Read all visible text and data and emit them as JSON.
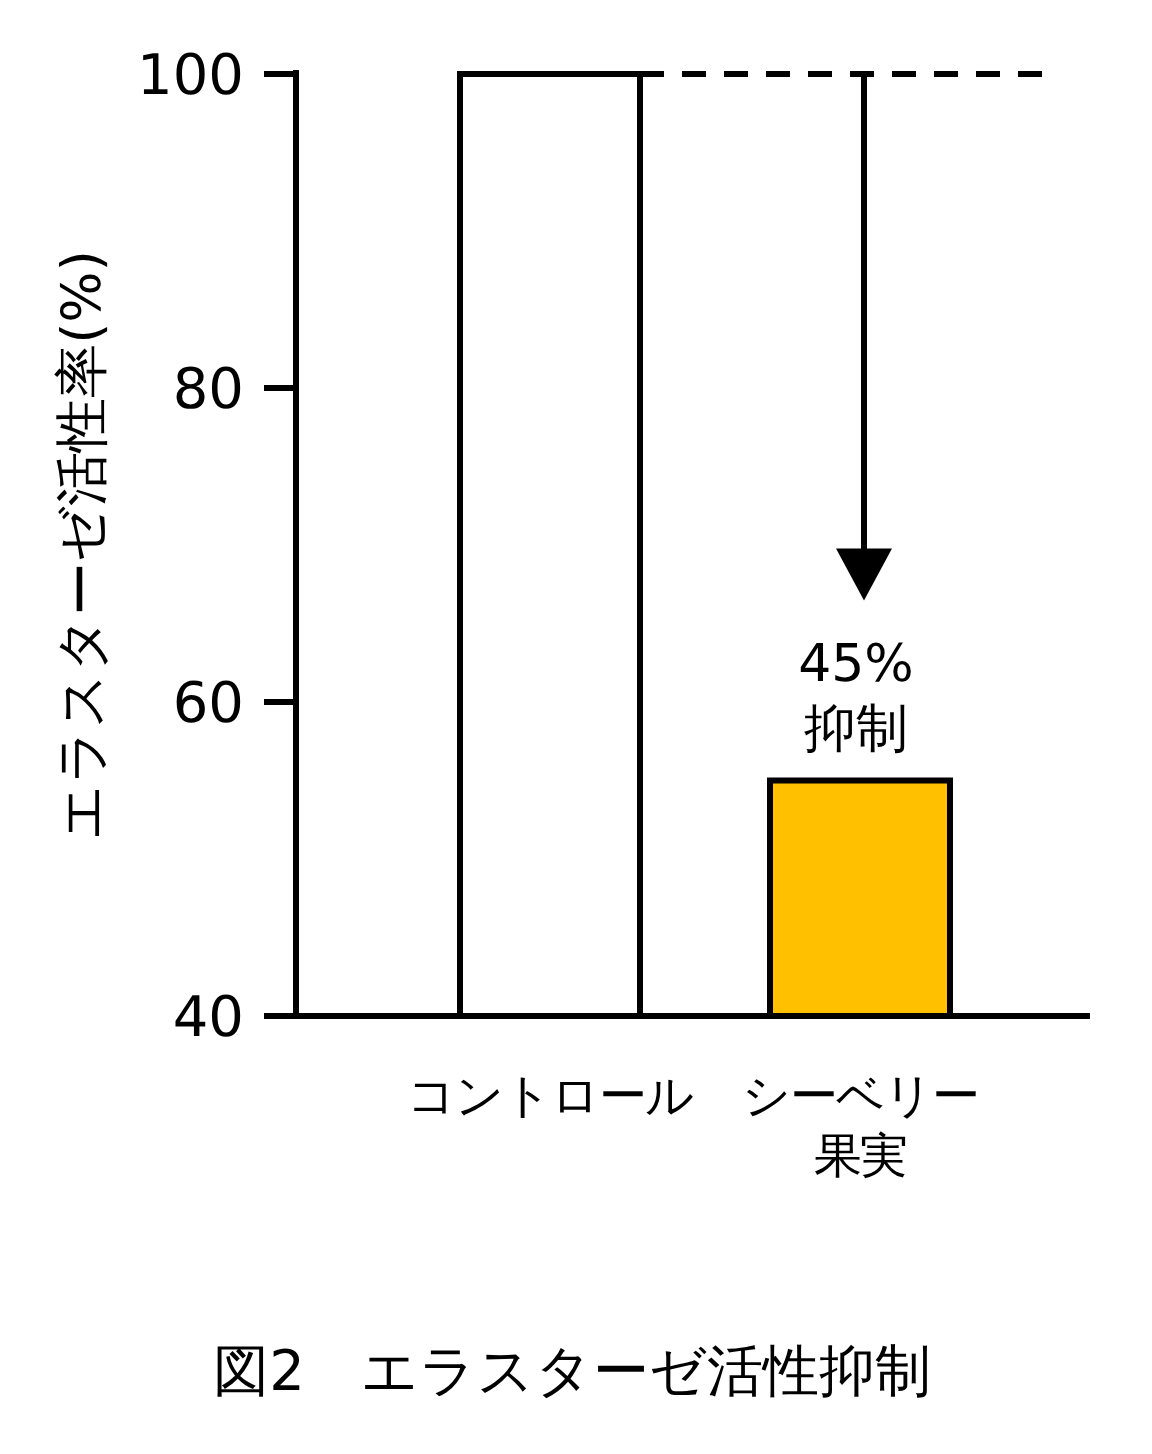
{
  "chart_data": {
    "type": "bar",
    "title": "図2　エラスターゼ活性抑制",
    "ylabel": "エラスターゼ活性率(%)",
    "categories": [
      "コントロール",
      "シーベリー果実"
    ],
    "values": [
      100,
      55
    ],
    "colors": [
      "#ffffff",
      "#ffc000"
    ],
    "ylim": [
      40,
      100
    ],
    "yticks": [
      40,
      60,
      80,
      100
    ],
    "ref_lines": [
      {
        "axis": "y",
        "value": 100,
        "line_style": "dashed",
        "color": "#000000"
      }
    ],
    "annotations": [
      {
        "text": "45%抑制",
        "x": "シーベリー果実",
        "y": 55
      }
    ]
  }
}
